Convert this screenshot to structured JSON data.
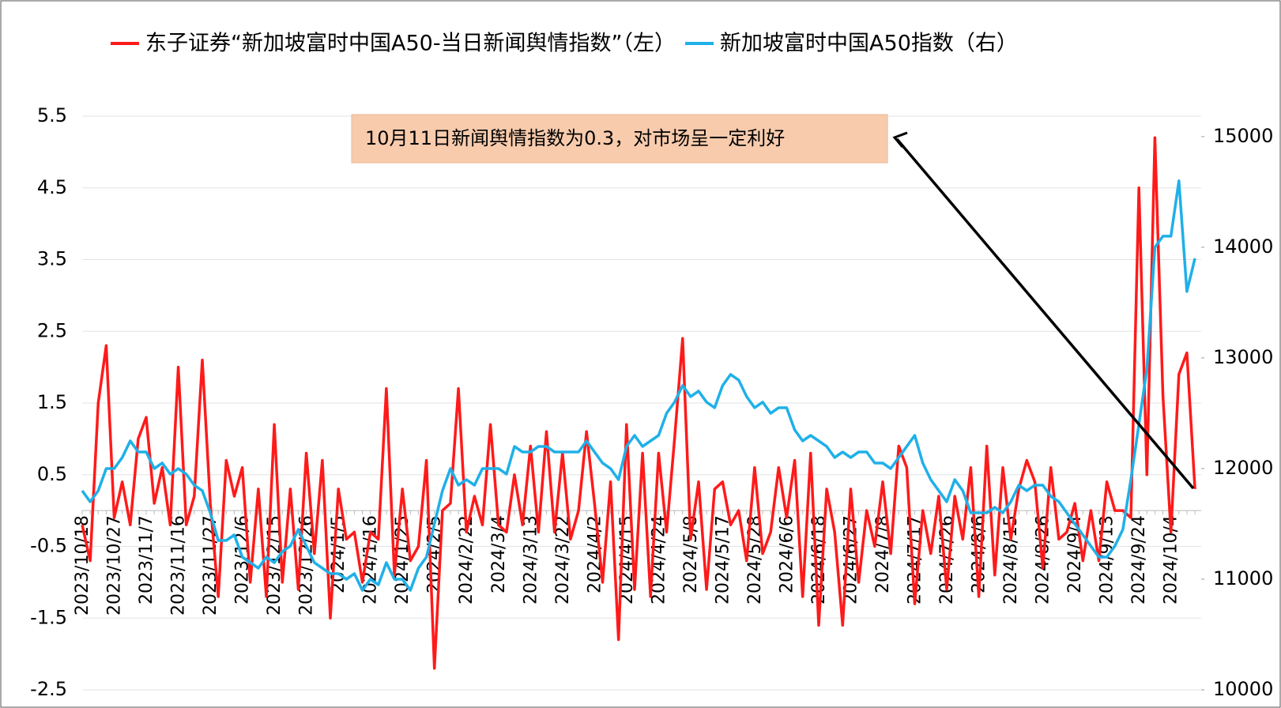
{
  "chart_data": {
    "type": "line",
    "annotation": "10月11日新闻舆情指数为0.3，对市场呈一定利好",
    "categories": [
      "2023/10/18",
      null,
      null,
      null,
      "2023/10/27",
      null,
      null,
      null,
      "2023/11/7",
      null,
      null,
      null,
      "2023/11/16",
      null,
      null,
      null,
      "2023/11/27",
      null,
      null,
      null,
      "2023/12/6",
      null,
      null,
      null,
      "2023/12/15",
      null,
      null,
      null,
      "2023/12/26",
      null,
      null,
      null,
      "2024/1/5",
      null,
      null,
      null,
      "2024/1/16",
      null,
      null,
      null,
      "2024/1/25",
      null,
      null,
      null,
      "2024/2/5",
      null,
      null,
      null,
      "2024/2/22",
      null,
      null,
      null,
      "2024/3/4",
      null,
      null,
      null,
      "2024/3/13",
      null,
      null,
      null,
      "2024/3/22",
      null,
      null,
      null,
      "2024/4/2",
      null,
      null,
      null,
      "2024/4/15",
      null,
      null,
      null,
      "2024/4/24",
      null,
      null,
      null,
      "2024/5/8",
      null,
      null,
      null,
      "2024/5/17",
      null,
      null,
      null,
      "2024/5/28",
      null,
      null,
      null,
      "2024/6/6",
      null,
      null,
      null,
      "2024/6/18",
      null,
      null,
      null,
      "2024/6/27",
      null,
      null,
      null,
      "2024/7/8",
      null,
      null,
      null,
      "2024/7/17",
      null,
      null,
      null,
      "2024/7/26",
      null,
      null,
      null,
      "2024/8/6",
      null,
      null,
      null,
      "2024/8/15",
      null,
      null,
      null,
      "2024/8/26",
      null,
      null,
      null,
      "2024/9/4",
      null,
      null,
      null,
      "2024/9/13",
      null,
      null,
      null,
      "2024/9/24",
      null,
      null,
      null,
      "2024/10/4",
      null,
      null,
      null
    ],
    "series": [
      {
        "name": "东子证券“新加坡富时中国A50-当日新闻舆情指数”（左）",
        "color": "#ff1a1a",
        "axis": "y",
        "values": [
          -0.2,
          -0.7,
          1.5,
          2.3,
          -0.1,
          0.4,
          -0.2,
          1.0,
          1.3,
          0.1,
          0.6,
          -0.2,
          2.0,
          -0.2,
          0.2,
          2.1,
          0.1,
          -1.2,
          0.7,
          0.2,
          0.6,
          -1.0,
          0.3,
          -1.2,
          1.2,
          -1.0,
          0.3,
          -1.1,
          0.8,
          -0.6,
          0.7,
          -1.5,
          0.3,
          -0.4,
          -0.3,
          -1.0,
          -0.3,
          -0.4,
          1.7,
          -0.9,
          0.3,
          -0.7,
          -0.5,
          0.7,
          -2.2,
          0.0,
          0.1,
          1.7,
          -0.3,
          0.2,
          -0.2,
          1.2,
          -0.2,
          -0.3,
          0.5,
          -0.2,
          0.9,
          -0.3,
          1.1,
          -0.3,
          0.8,
          -0.4,
          0.0,
          1.1,
          0.1,
          -1.0,
          0.4,
          -1.8,
          1.2,
          -1.1,
          0.8,
          -1.2,
          0.8,
          -0.3,
          1.0,
          2.4,
          -0.4,
          0.4,
          -1.1,
          0.3,
          0.4,
          -0.2,
          0.0,
          -0.7,
          0.6,
          -0.6,
          -0.3,
          0.6,
          -0.1,
          0.7,
          -1.2,
          0.8,
          -1.6,
          0.3,
          -0.3,
          -1.6,
          0.3,
          -1.0,
          0.0,
          -0.5,
          0.4,
          -0.6,
          0.9,
          0.6,
          -1.3,
          0.0,
          -0.6,
          0.2,
          -1.1,
          0.2,
          -0.4,
          0.6,
          -1.2,
          0.9,
          -0.9,
          0.6,
          -0.4,
          0.3,
          0.7,
          0.4,
          -0.8,
          0.6,
          -0.4,
          -0.3,
          0.1,
          -0.7,
          0.0,
          -0.7,
          0.4,
          0.0,
          0.0,
          -0.1,
          4.5,
          0.5,
          5.2,
          1.6,
          -0.3,
          1.9,
          2.2,
          0.3
        ]
      },
      {
        "name": "新加坡富时中国A50指数（右）",
        "color": "#1fb0e8",
        "axis": "y2",
        "values": [
          11800,
          11700,
          11800,
          12000,
          12000,
          12100,
          12250,
          12150,
          12150,
          12000,
          12050,
          11950,
          12000,
          11950,
          11850,
          11800,
          11600,
          11350,
          11350,
          11400,
          11200,
          11150,
          11100,
          11200,
          11150,
          11250,
          11300,
          11450,
          11300,
          11150,
          11100,
          11050,
          11050,
          11000,
          11050,
          10900,
          11000,
          10950,
          11150,
          11000,
          11000,
          10900,
          11100,
          11200,
          11500,
          11800,
          12000,
          11850,
          11900,
          11850,
          12000,
          12000,
          12000,
          11950,
          12200,
          12150,
          12150,
          12200,
          12200,
          12150,
          12150,
          12150,
          12150,
          12250,
          12150,
          12050,
          12000,
          11900,
          12200,
          12300,
          12200,
          12250,
          12300,
          12500,
          12600,
          12750,
          12650,
          12700,
          12600,
          12550,
          12750,
          12850,
          12800,
          12650,
          12550,
          12600,
          12500,
          12550,
          12550,
          12350,
          12250,
          12300,
          12250,
          12200,
          12100,
          12150,
          12100,
          12150,
          12150,
          12050,
          12050,
          12000,
          12100,
          12200,
          12300,
          12050,
          11900,
          11800,
          11700,
          11900,
          11800,
          11600,
          11600,
          11600,
          11650,
          11600,
          11700,
          11850,
          11800,
          11850,
          11850,
          11750,
          11700,
          11600,
          11500,
          11400,
          11300,
          11200,
          11200,
          11300,
          11450,
          11900,
          12400,
          12900,
          14000,
          14100,
          14100,
          14600,
          13600,
          13900
        ]
      }
    ],
    "ylim": [
      -2.5,
      5.5
    ],
    "yticks": [
      5.5,
      4.5,
      3.5,
      2.5,
      1.5,
      0.5,
      -0.5,
      -1.5,
      -2.5
    ],
    "y2lim": [
      10000,
      15185
    ],
    "y2ticks": [
      15000,
      14000,
      13000,
      12000,
      11000,
      10000
    ],
    "grid": true
  }
}
